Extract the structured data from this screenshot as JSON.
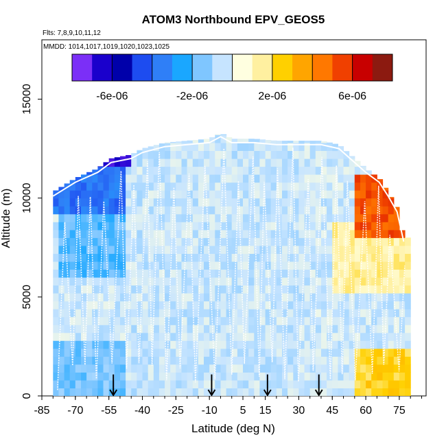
{
  "chart_data": {
    "type": "heatmap",
    "title": "ATOM3 Northbound EPV_GEOS5",
    "flights_note": "Flts: 7,8,9,10,11,12",
    "dates_note": "MMDD: 1014,1017,1019,1020,1023,1025",
    "xlabel": "Latitude (deg N)",
    "ylabel": "Altitude (m)",
    "xlim": [
      -85,
      87
    ],
    "ylim": [
      0,
      18000
    ],
    "x_ticks": [
      -85,
      -70,
      -55,
      -40,
      -25,
      -10,
      5,
      15,
      30,
      45,
      60,
      75
    ],
    "y_ticks": [
      0,
      5000,
      10000,
      15000
    ],
    "colorbar": {
      "min": -8e-06,
      "max": 8e-06,
      "tick_values": [
        -6e-06,
        -2e-06,
        2e-06,
        6e-06
      ],
      "tick_labels": [
        "-6e-06",
        "-2e-06",
        "2e-06",
        "6e-06"
      ],
      "colors": [
        "#7b2ff7",
        "#1a00cc",
        "#0000aa",
        "#1d4cf0",
        "#2f7ff7",
        "#1aa7ff",
        "#7fc6ff",
        "#c6e4ff",
        "#ffffe0",
        "#fff0a0",
        "#ffd000",
        "#ffa500",
        "#ff7800",
        "#f04000",
        "#c80000",
        "#8c1a10"
      ]
    },
    "flight_markers_latitude": [
      -53,
      -9,
      16,
      39
    ],
    "ceiling_altitude_profile": {
      "latitude": [
        -80,
        -70,
        -60,
        -54,
        -45,
        -40,
        -30,
        -20,
        -10,
        -5,
        0,
        10,
        20,
        30,
        40,
        48,
        55,
        60,
        66,
        70,
        74,
        77
      ],
      "altitude": [
        10300,
        11000,
        11500,
        12000,
        12200,
        12500,
        12800,
        12900,
        13000,
        13300,
        13000,
        13000,
        12900,
        12900,
        12900,
        12700,
        12000,
        11500,
        11000,
        10300,
        9500,
        8000
      ]
    },
    "regions": [
      {
        "name": "southern-upper-negative",
        "lat_range": [
          -80,
          -50
        ],
        "alt_range": [
          9000,
          12000
        ],
        "value": -4e-06
      },
      {
        "name": "southern-top-strong-negative",
        "lat_range": [
          -70,
          -35
        ],
        "alt_range": [
          11500,
          12200
        ],
        "value": -7e-06
      },
      {
        "name": "southern-mid-negative",
        "lat_range": [
          -78,
          -48
        ],
        "alt_range": [
          6000,
          9000
        ],
        "value": -2e-06
      },
      {
        "name": "southern-low-negative",
        "lat_range": [
          -80,
          -50
        ],
        "alt_range": [
          0,
          2500
        ],
        "value": -1.6e-06
      },
      {
        "name": "tropics-background",
        "lat_range": [
          -45,
          30
        ],
        "alt_range": [
          0,
          12500
        ],
        "value": -5e-07
      },
      {
        "name": "northern-mid-positive",
        "lat_range": [
          45,
          78
        ],
        "alt_range": [
          5000,
          8500
        ],
        "value": 1.5e-06
      },
      {
        "name": "northern-upper-positive",
        "lat_range": [
          55,
          78
        ],
        "alt_range": [
          8000,
          11000
        ],
        "value": 5.5e-06
      },
      {
        "name": "northern-low-positive",
        "lat_range": [
          55,
          80
        ],
        "alt_range": [
          0,
          2000
        ],
        "value": 2.5e-06
      }
    ]
  }
}
